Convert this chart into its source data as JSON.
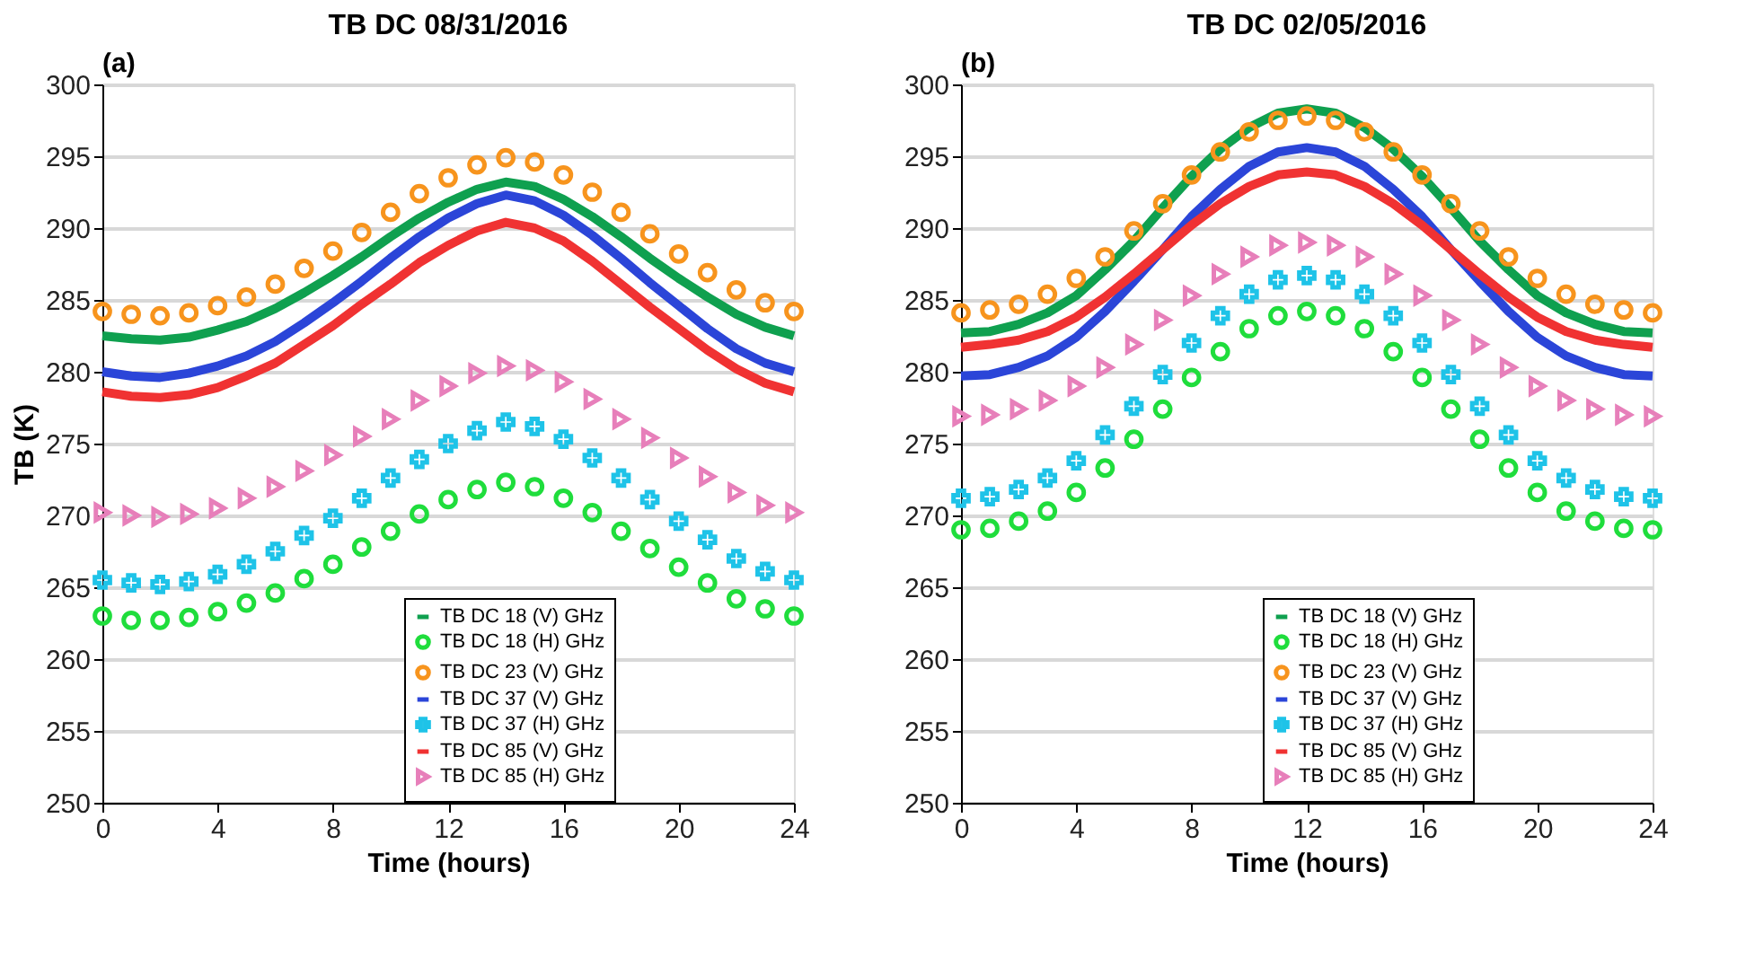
{
  "chart_data": [
    {
      "type": "line",
      "title": "TB DC 08/31/2016",
      "xlabel": "Time (hours)",
      "ylabel": "TB (K)",
      "annotations": [
        "(a)"
      ],
      "x": [
        0,
        1,
        2,
        3,
        4,
        5,
        6,
        7,
        8,
        9,
        10,
        11,
        12,
        13,
        14,
        15,
        16,
        17,
        18,
        19,
        20,
        21,
        22,
        23,
        24
      ],
      "xlim": [
        0,
        24
      ],
      "xticks": [
        0,
        4,
        8,
        12,
        16,
        20,
        24
      ],
      "ylim": [
        250,
        300
      ],
      "yticks": [
        250,
        255,
        260,
        265,
        270,
        275,
        280,
        285,
        290,
        295,
        300
      ],
      "grid": "y",
      "legend": "bottom right",
      "series": [
        {
          "name": "TB DC 18 (V) GHz",
          "type": "line",
          "marker": "none",
          "line_style": "solid",
          "color": "#0fa04f",
          "values": [
            282.5,
            282.3,
            282.2,
            282.4,
            282.9,
            283.5,
            284.4,
            285.5,
            286.7,
            288.0,
            289.4,
            290.7,
            291.8,
            292.7,
            293.2,
            292.9,
            292.0,
            290.8,
            289.4,
            287.9,
            286.5,
            285.2,
            284.0,
            283.1,
            282.5
          ]
        },
        {
          "name": "TB DC 18 (H) GHz",
          "type": "scatter",
          "marker": "circle",
          "color": "#1fdd3c",
          "values": [
            263.0,
            262.7,
            262.7,
            262.9,
            263.3,
            263.9,
            264.6,
            265.6,
            266.6,
            267.8,
            268.9,
            270.1,
            271.1,
            271.8,
            272.3,
            272.0,
            271.2,
            270.2,
            268.9,
            267.7,
            266.4,
            265.3,
            264.2,
            263.5,
            263.0
          ]
        },
        {
          "name": "TB DC 23 (V) GHz",
          "type": "scatter",
          "marker": "circle",
          "color": "#f7941d",
          "values": [
            284.2,
            284.0,
            283.9,
            284.1,
            284.6,
            285.2,
            286.1,
            287.2,
            288.4,
            289.7,
            291.1,
            292.4,
            293.5,
            294.4,
            294.9,
            294.6,
            293.7,
            292.5,
            291.1,
            289.6,
            288.2,
            286.9,
            285.7,
            284.8,
            284.2
          ]
        },
        {
          "name": "TB DC 37 (V) GHz",
          "type": "line",
          "marker": "none",
          "line_style": "solid",
          "color": "#2b45d8",
          "values": [
            280.0,
            279.7,
            279.6,
            279.9,
            280.4,
            281.1,
            282.1,
            283.4,
            284.8,
            286.3,
            287.9,
            289.4,
            290.7,
            291.7,
            292.3,
            291.9,
            290.9,
            289.5,
            287.9,
            286.2,
            284.6,
            283.0,
            281.6,
            280.6,
            280.0
          ]
        },
        {
          "name": "TB DC 37 (H) GHz",
          "type": "scatter",
          "marker": "cross",
          "color": "#1ec3e8",
          "values": [
            265.5,
            265.3,
            265.2,
            265.4,
            265.9,
            266.6,
            267.5,
            268.6,
            269.8,
            271.2,
            272.6,
            273.9,
            275.0,
            275.9,
            276.5,
            276.2,
            275.3,
            274.0,
            272.6,
            271.1,
            269.6,
            268.3,
            267.0,
            266.1,
            265.5
          ]
        },
        {
          "name": "TB DC 85 (V) GHz",
          "type": "line",
          "marker": "none",
          "line_style": "solid",
          "color": "#f03232",
          "values": [
            278.6,
            278.3,
            278.2,
            278.4,
            278.9,
            279.7,
            280.6,
            281.9,
            283.2,
            284.7,
            286.1,
            287.6,
            288.8,
            289.8,
            290.4,
            290.0,
            289.1,
            287.7,
            286.1,
            284.5,
            283.0,
            281.5,
            280.2,
            279.2,
            278.6
          ]
        },
        {
          "name": "TB DC 85 (H) GHz",
          "type": "scatter",
          "marker": "triangle",
          "color": "#e77fba",
          "values": [
            270.2,
            270.0,
            269.9,
            270.1,
            270.5,
            271.2,
            272.0,
            273.1,
            274.2,
            275.5,
            276.7,
            278.0,
            279.0,
            279.9,
            280.4,
            280.1,
            279.3,
            278.1,
            276.7,
            275.4,
            274.0,
            272.7,
            271.6,
            270.7,
            270.2
          ]
        }
      ]
    },
    {
      "type": "line",
      "title": "TB DC 02/05/2016",
      "xlabel": "Time (hours)",
      "annotations": [
        "(b)"
      ],
      "x": [
        0,
        1,
        2,
        3,
        4,
        5,
        6,
        7,
        8,
        9,
        10,
        11,
        12,
        13,
        14,
        15,
        16,
        17,
        18,
        19,
        20,
        21,
        22,
        23,
        24
      ],
      "xlim": [
        0,
        24
      ],
      "xticks": [
        0,
        4,
        8,
        12,
        16,
        20,
        24
      ],
      "ylim": [
        250,
        300
      ],
      "yticks": [
        250,
        255,
        260,
        265,
        270,
        275,
        280,
        285,
        290,
        295,
        300
      ],
      "grid": "y",
      "legend": "bottom right",
      "series": [
        {
          "name": "TB DC 18 (V) GHz",
          "type": "line",
          "marker": "none",
          "line_style": "solid",
          "color": "#0fa04f",
          "values": [
            282.7,
            282.8,
            283.3,
            284.1,
            285.3,
            287.1,
            289.1,
            291.4,
            293.6,
            295.5,
            297.0,
            298.0,
            298.3,
            298.0,
            297.0,
            295.5,
            293.6,
            291.4,
            289.1,
            287.1,
            285.3,
            284.1,
            283.3,
            282.8,
            282.7
          ]
        },
        {
          "name": "TB DC 18 (H) GHz",
          "type": "scatter",
          "marker": "circle",
          "color": "#1fdd3c",
          "values": [
            269.0,
            269.1,
            269.6,
            270.3,
            271.6,
            273.3,
            275.3,
            277.4,
            279.6,
            281.4,
            283.0,
            283.9,
            284.2,
            283.9,
            283.0,
            281.4,
            279.6,
            277.4,
            275.3,
            273.3,
            271.6,
            270.3,
            269.6,
            269.1,
            269.0
          ]
        },
        {
          "name": "TB DC 23 (V) GHz",
          "type": "scatter",
          "marker": "circle",
          "color": "#f7941d",
          "values": [
            284.1,
            284.3,
            284.7,
            285.4,
            286.5,
            288.0,
            289.8,
            291.7,
            293.7,
            295.3,
            296.7,
            297.5,
            297.8,
            297.5,
            296.7,
            295.3,
            293.7,
            291.7,
            289.8,
            288.0,
            286.5,
            285.4,
            284.7,
            284.3,
            284.1
          ]
        },
        {
          "name": "TB DC 37 (V) GHz",
          "type": "line",
          "marker": "none",
          "line_style": "solid",
          "color": "#2b45d8",
          "values": [
            279.7,
            279.8,
            280.3,
            281.1,
            282.4,
            284.2,
            286.3,
            288.5,
            290.8,
            292.7,
            294.3,
            295.3,
            295.6,
            295.3,
            294.3,
            292.7,
            290.8,
            288.5,
            286.3,
            284.2,
            282.4,
            281.1,
            280.3,
            279.8,
            279.7
          ]
        },
        {
          "name": "TB DC 37 (H) GHz",
          "type": "scatter",
          "marker": "cross",
          "color": "#1ec3e8",
          "values": [
            271.2,
            271.3,
            271.8,
            272.6,
            273.8,
            275.6,
            277.6,
            279.8,
            282.0,
            283.9,
            285.4,
            286.4,
            286.7,
            286.4,
            285.4,
            283.9,
            282.0,
            279.8,
            277.6,
            275.6,
            273.8,
            272.6,
            271.8,
            271.3,
            271.2
          ]
        },
        {
          "name": "TB DC 85 (V) GHz",
          "type": "line",
          "marker": "none",
          "line_style": "solid",
          "color": "#f03232",
          "values": [
            281.7,
            281.9,
            282.2,
            282.8,
            283.8,
            285.2,
            286.8,
            288.5,
            290.2,
            291.7,
            292.9,
            293.7,
            293.9,
            293.7,
            292.9,
            291.7,
            290.2,
            288.5,
            286.8,
            285.2,
            283.8,
            282.8,
            282.2,
            281.9,
            281.7
          ]
        },
        {
          "name": "TB DC 85 (H) GHz",
          "type": "scatter",
          "marker": "triangle",
          "color": "#e77fba",
          "values": [
            276.9,
            277.0,
            277.4,
            278.0,
            279.0,
            280.3,
            281.9,
            283.6,
            285.3,
            286.8,
            288.0,
            288.8,
            289.0,
            288.8,
            288.0,
            286.8,
            285.3,
            283.6,
            281.9,
            280.3,
            279.0,
            278.0,
            277.4,
            277.0,
            276.9
          ]
        }
      ]
    }
  ]
}
